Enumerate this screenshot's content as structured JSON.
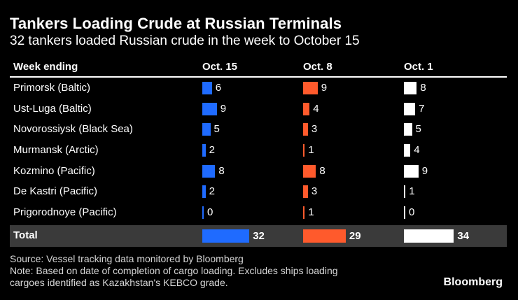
{
  "title": "Tankers Loading Crude at Russian Terminals",
  "subtitle": "32 tankers loaded Russian crude in the week to October 15",
  "header": {
    "week_ending": "Week ending",
    "columns": [
      "Oct. 15",
      "Oct. 8",
      "Oct. 1"
    ]
  },
  "colors": {
    "Oct. 15": "#1f6bff",
    "Oct. 8": "#ff5a2c",
    "Oct. 1": "#ffffff"
  },
  "chart_data": {
    "type": "bar",
    "categories": [
      "Primorsk (Baltic)",
      "Ust-Luga (Baltic)",
      "Novorossiysk (Black Sea)",
      "Murmansk (Arctic)",
      "Kozmino (Pacific)",
      "De Kastri (Pacific)",
      "Prigorodnoye (Pacific)"
    ],
    "series": [
      {
        "name": "Oct. 15",
        "values": [
          6,
          9,
          5,
          2,
          8,
          2,
          0
        ]
      },
      {
        "name": "Oct. 8",
        "values": [
          9,
          4,
          3,
          1,
          8,
          3,
          1
        ]
      },
      {
        "name": "Oct. 1",
        "values": [
          8,
          7,
          5,
          4,
          9,
          1,
          0
        ]
      }
    ],
    "totals": {
      "label": "Total",
      "values": [
        32,
        29,
        34
      ]
    }
  },
  "footer": {
    "source": "Source: Vessel tracking data monitored by Bloomberg",
    "note_line1": "Note: Based on date of completion of cargo loading. Excludes ships loading",
    "note_line2": "cargoes identified as Kazakhstan's KEBCO grade.",
    "brand": "Bloomberg"
  }
}
